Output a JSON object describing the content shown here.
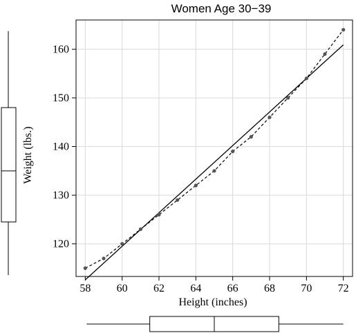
{
  "chart_data": {
    "type": "scatter",
    "title": "Women Age 30−39",
    "xlabel": "Height (inches)",
    "ylabel": "Weight (lbs.)",
    "xlim": [
      57.5,
      72.5
    ],
    "ylim": [
      113.3,
      166.0
    ],
    "xticks": [
      58,
      60,
      62,
      64,
      66,
      68,
      70,
      72
    ],
    "yticks": [
      120,
      130,
      140,
      150,
      160
    ],
    "grid": true,
    "points": {
      "x": [
        58,
        59,
        60,
        61,
        62,
        63,
        64,
        65,
        66,
        67,
        68,
        69,
        70,
        71,
        72
      ],
      "y": [
        115,
        117,
        120,
        123,
        126,
        129,
        132,
        135,
        139,
        142,
        146,
        150,
        154,
        159,
        164
      ]
    },
    "regression_line": {
      "x": [
        58,
        72
      ],
      "y": [
        112.6,
        160.9
      ],
      "style": "solid"
    },
    "smooth_curve": {
      "style": "dashed"
    },
    "marginal_boxplots": {
      "x": {
        "min": 58,
        "q1": 61.5,
        "median": 65,
        "q3": 68.5,
        "max": 72
      },
      "y": {
        "min": 115,
        "q1": 124.5,
        "median": 135,
        "q3": 148,
        "max": 164
      }
    },
    "colors": {
      "points": "#555555",
      "lines": "#000000",
      "grid": "#d9d9d9"
    }
  }
}
